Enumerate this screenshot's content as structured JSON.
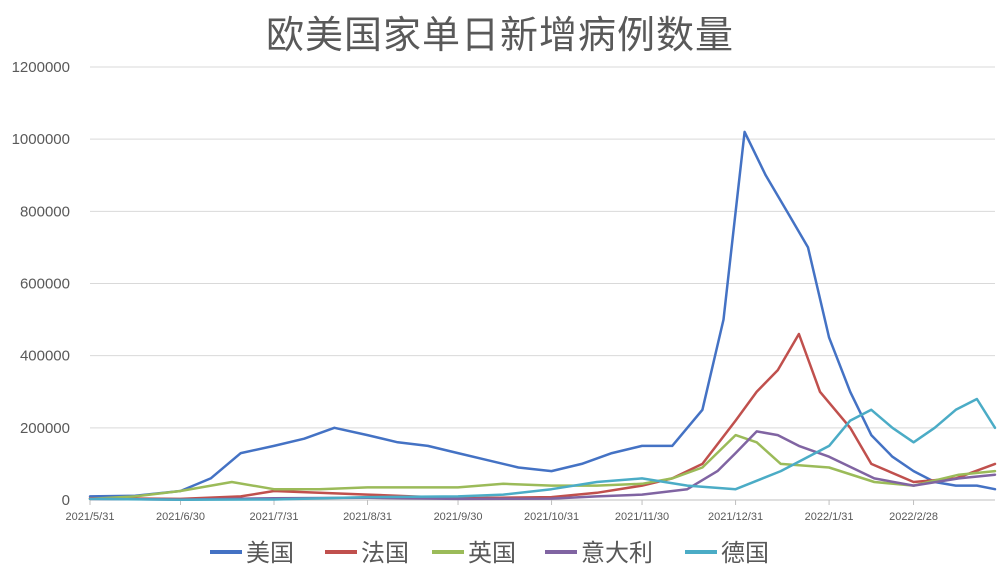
{
  "chart_data": {
    "type": "line",
    "title": "欧美国家单日新增病例数量",
    "xlabel": "",
    "ylabel": "",
    "ylim": [
      0,
      1200000
    ],
    "yticks": [
      0,
      200000,
      400000,
      600000,
      800000,
      1000000,
      1200000
    ],
    "ytick_labels": [
      "0",
      "200000",
      "400000",
      "600000",
      "800000",
      "1000000",
      "1200000"
    ],
    "x_start": "2021-05-31",
    "x_end": "2022-03-27",
    "xtick_labels": [
      "2021/5/31",
      "2021/6/30",
      "2021/7/31",
      "2021/8/31",
      "2021/9/30",
      "2021/10/31",
      "2021/11/30",
      "2021/12/31",
      "2022/1/31",
      "2022/2/28"
    ],
    "grid": true,
    "legend_position": "bottom",
    "series": [
      {
        "name": "美国",
        "color": "#4472C4",
        "x": [
          "2021-05-31",
          "2021-06-15",
          "2021-06-30",
          "2021-07-10",
          "2021-07-20",
          "2021-07-31",
          "2021-08-10",
          "2021-08-20",
          "2021-08-31",
          "2021-09-10",
          "2021-09-20",
          "2021-09-30",
          "2021-10-10",
          "2021-10-20",
          "2021-10-31",
          "2021-11-10",
          "2021-11-20",
          "2021-11-30",
          "2021-12-10",
          "2021-12-20",
          "2021-12-27",
          "2022-01-03",
          "2022-01-10",
          "2022-01-17",
          "2022-01-24",
          "2022-01-31",
          "2022-02-07",
          "2022-02-14",
          "2022-02-21",
          "2022-02-28",
          "2022-03-07",
          "2022-03-14",
          "2022-03-21",
          "2022-03-27"
        ],
        "values": [
          10000,
          12000,
          25000,
          60000,
          130000,
          150000,
          170000,
          200000,
          180000,
          160000,
          150000,
          130000,
          110000,
          90000,
          80000,
          100000,
          130000,
          150000,
          150000,
          250000,
          500000,
          1020000,
          900000,
          800000,
          700000,
          450000,
          300000,
          180000,
          120000,
          80000,
          50000,
          40000,
          40000,
          30000
        ]
      },
      {
        "name": "法国",
        "color": "#C0504D",
        "x": [
          "2021-05-31",
          "2021-06-30",
          "2021-07-20",
          "2021-07-31",
          "2021-08-15",
          "2021-08-31",
          "2021-09-30",
          "2021-10-31",
          "2021-11-15",
          "2021-11-30",
          "2021-12-10",
          "2021-12-20",
          "2021-12-31",
          "2022-01-07",
          "2022-01-14",
          "2022-01-21",
          "2022-01-28",
          "2022-02-07",
          "2022-02-14",
          "2022-02-28",
          "2022-03-14",
          "2022-03-27"
        ],
        "values": [
          5000,
          3000,
          10000,
          25000,
          20000,
          15000,
          5000,
          8000,
          20000,
          40000,
          60000,
          100000,
          220000,
          300000,
          360000,
          460000,
          300000,
          200000,
          100000,
          50000,
          60000,
          100000
        ]
      },
      {
        "name": "英国",
        "color": "#9BBB59",
        "x": [
          "2021-05-31",
          "2021-06-15",
          "2021-06-30",
          "2021-07-17",
          "2021-07-31",
          "2021-08-15",
          "2021-08-31",
          "2021-09-15",
          "2021-09-30",
          "2021-10-15",
          "2021-10-31",
          "2021-11-15",
          "2021-11-30",
          "2021-12-10",
          "2021-12-20",
          "2021-12-31",
          "2022-01-07",
          "2022-01-15",
          "2022-01-31",
          "2022-02-15",
          "2022-02-28",
          "2022-03-15",
          "2022-03-27"
        ],
        "values": [
          3000,
          10000,
          25000,
          50000,
          30000,
          30000,
          35000,
          35000,
          35000,
          45000,
          40000,
          40000,
          45000,
          60000,
          90000,
          180000,
          160000,
          100000,
          90000,
          50000,
          40000,
          70000,
          80000
        ]
      },
      {
        "name": "意大利",
        "color": "#8064A2",
        "x": [
          "2021-05-31",
          "2021-06-30",
          "2021-07-31",
          "2021-08-31",
          "2021-09-30",
          "2021-10-31",
          "2021-11-15",
          "2021-11-30",
          "2021-12-15",
          "2021-12-25",
          "2021-12-31",
          "2022-01-07",
          "2022-01-14",
          "2022-01-21",
          "2022-01-31",
          "2022-02-15",
          "2022-02-28",
          "2022-03-15",
          "2022-03-27"
        ],
        "values": [
          3000,
          1000,
          5000,
          6000,
          3000,
          4000,
          10000,
          15000,
          30000,
          80000,
          130000,
          190000,
          180000,
          150000,
          120000,
          60000,
          40000,
          60000,
          70000
        ]
      },
      {
        "name": "德国",
        "color": "#4BACC6",
        "x": [
          "2021-05-31",
          "2021-06-30",
          "2021-07-31",
          "2021-08-31",
          "2021-09-30",
          "2021-10-15",
          "2021-10-31",
          "2021-11-15",
          "2021-11-30",
          "2021-12-15",
          "2021-12-31",
          "2022-01-15",
          "2022-01-31",
          "2022-02-07",
          "2022-02-14",
          "2022-02-21",
          "2022-02-28",
          "2022-03-07",
          "2022-03-14",
          "2022-03-21",
          "2022-03-27"
        ],
        "values": [
          3000,
          700,
          1500,
          8000,
          10000,
          15000,
          30000,
          50000,
          60000,
          40000,
          30000,
          80000,
          150000,
          220000,
          250000,
          200000,
          160000,
          200000,
          250000,
          280000,
          200000
        ]
      }
    ]
  }
}
